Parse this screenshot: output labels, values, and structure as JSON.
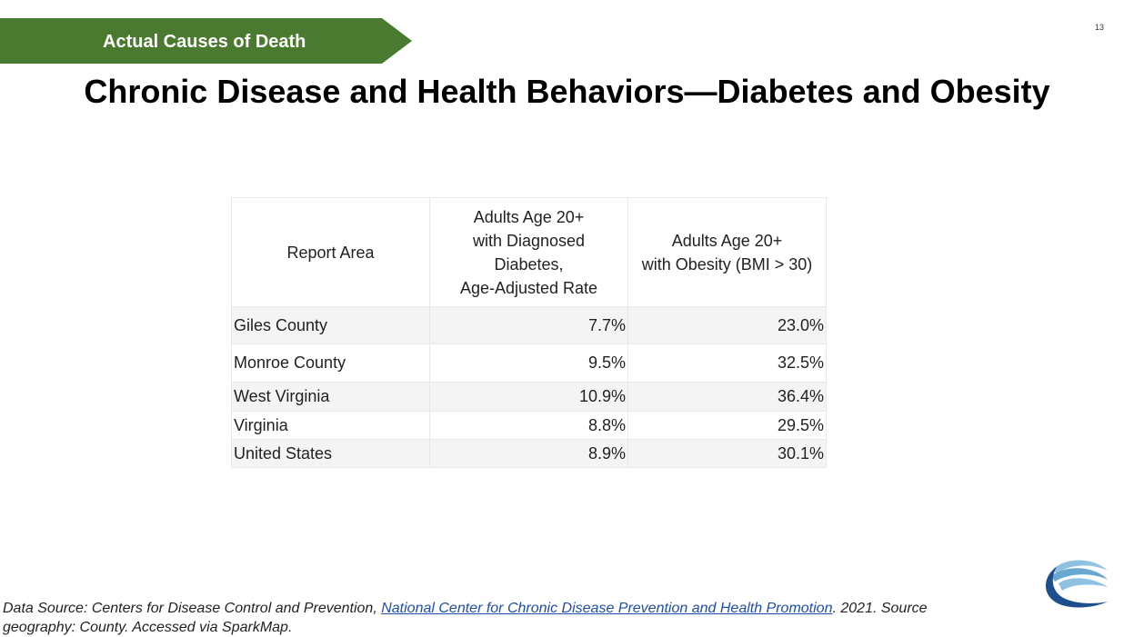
{
  "banner": {
    "label": "Actual Causes of Death",
    "color": "#4a7a2f"
  },
  "slide_number": "13",
  "title": "Chronic Disease and Health Behaviors—Diabetes and Obesity",
  "table": {
    "headers": {
      "area": "Report Area",
      "diabetes": [
        "Adults Age 20+",
        "with Diagnosed",
        "Diabetes,",
        "Age-Adjusted Rate"
      ],
      "obesity": [
        "Adults Age 20+",
        "with Obesity (BMI > 30)"
      ]
    },
    "rows": [
      {
        "area": "Giles County",
        "diabetes": "7.7%",
        "obesity": "23.0%"
      },
      {
        "area": "Monroe County",
        "diabetes": "9.5%",
        "obesity": "32.5%"
      },
      {
        "area": "West Virginia",
        "diabetes": "10.9%",
        "obesity": "36.4%"
      },
      {
        "area": "Virginia",
        "diabetes": "8.8%",
        "obesity": "29.5%"
      },
      {
        "area": "United States",
        "diabetes": "8.9%",
        "obesity": "30.1%"
      }
    ]
  },
  "source": {
    "prefix": "Data Source: Centers for Disease Control and Prevention, ",
    "link_text": "National Center for Chronic Disease Prevention and Health Promotion",
    "suffix": ". 2021. Source geography: County. Accessed via SparkMap."
  },
  "colors": {
    "link": "#1f4ea8",
    "logo_dark": "#1c4f8c",
    "logo_light": "#8fc2e0"
  }
}
